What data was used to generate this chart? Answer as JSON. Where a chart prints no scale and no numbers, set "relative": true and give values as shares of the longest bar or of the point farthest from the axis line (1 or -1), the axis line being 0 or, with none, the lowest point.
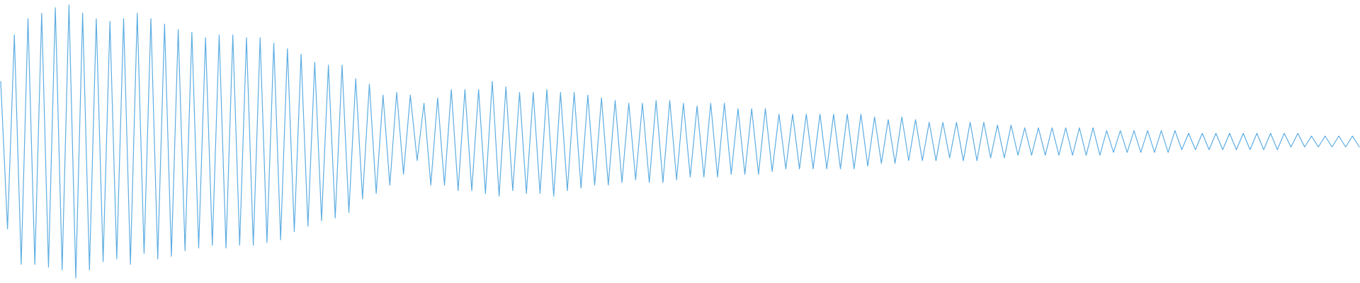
{
  "chart_data": {
    "type": "line",
    "relative": true,
    "color": "#5dade2",
    "categories": [
      null,
      null,
      null,
      null,
      null,
      null,
      null,
      null,
      null,
      null,
      null,
      null,
      null,
      null,
      null,
      null,
      null,
      null,
      null,
      null,
      null,
      null,
      null,
      null,
      null,
      null,
      null,
      null,
      null,
      null,
      null,
      null,
      null,
      null,
      null,
      null,
      null,
      null,
      null,
      null,
      null,
      null,
      null,
      null,
      null,
      null,
      null,
      null,
      null,
      null,
      null,
      null,
      null,
      null,
      null,
      null,
      null,
      null,
      null,
      null,
      null,
      null,
      null,
      null,
      null,
      null,
      null,
      null,
      null,
      null,
      null,
      null,
      null,
      null,
      null,
      null,
      null,
      null,
      null,
      null,
      null,
      null,
      null,
      null,
      null,
      null,
      null,
      null,
      null,
      null,
      null,
      null,
      null,
      null,
      null,
      null,
      null,
      null,
      null,
      null,
      null,
      null,
      null,
      null,
      null,
      null,
      null,
      null,
      null,
      null,
      null,
      null,
      null,
      null,
      null,
      null,
      null,
      null,
      null,
      null,
      null,
      null,
      null,
      null,
      null,
      null,
      null,
      null,
      null,
      null,
      null,
      null,
      null,
      null,
      null,
      null,
      null,
      null,
      null,
      null,
      null,
      null,
      null,
      null,
      null,
      null,
      null,
      null,
      null,
      null,
      null,
      null,
      null,
      null,
      null,
      null,
      null,
      null,
      null,
      null,
      null,
      null,
      null,
      null,
      null,
      null,
      null,
      null,
      null,
      null,
      null,
      null,
      null,
      null,
      null,
      null,
      null,
      null,
      null,
      null,
      null,
      null,
      null,
      null,
      null,
      null,
      null,
      null,
      null,
      null,
      null,
      null,
      null,
      null,
      null,
      null,
      null,
      null,
      null,
      null
    ],
    "values": [
      0.72,
      0.18,
      0.89,
      0.05,
      0.95,
      0.05,
      0.97,
      0.04,
      0.99,
      0.03,
      1,
      0,
      0.97,
      0.03,
      0.95,
      0.06,
      0.94,
      0.07,
      0.95,
      0.05,
      0.97,
      0.09,
      0.95,
      0.07,
      0.93,
      0.08,
      0.91,
      0.1,
      0.9,
      0.11,
      0.88,
      0.12,
      0.89,
      0.11,
      0.89,
      0.12,
      0.88,
      0.12,
      0.88,
      0.13,
      0.86,
      0.14,
      0.84,
      0.17,
      0.82,
      0.19,
      0.79,
      0.21,
      0.78,
      0.22,
      0.78,
      0.24,
      0.73,
      0.29,
      0.71,
      0.31,
      0.67,
      0.34,
      0.68,
      0.38,
      0.67,
      0.43,
      0.64,
      0.34,
      0.66,
      0.34,
      0.69,
      0.32,
      0.69,
      0.32,
      0.69,
      0.31,
      0.72,
      0.3,
      0.7,
      0.32,
      0.68,
      0.31,
      0.68,
      0.31,
      0.69,
      0.3,
      0.68,
      0.32,
      0.68,
      0.33,
      0.67,
      0.34,
      0.66,
      0.34,
      0.65,
      0.35,
      0.64,
      0.36,
      0.64,
      0.35,
      0.65,
      0.35,
      0.65,
      0.36,
      0.64,
      0.37,
      0.63,
      0.37,
      0.64,
      0.37,
      0.64,
      0.38,
      0.62,
      0.38,
      0.62,
      0.38,
      0.62,
      0.39,
      0.6,
      0.4,
      0.6,
      0.4,
      0.6,
      0.4,
      0.6,
      0.4,
      0.6,
      0.4,
      0.6,
      0.4,
      0.6,
      0.41,
      0.59,
      0.42,
      0.58,
      0.42,
      0.59,
      0.43,
      0.58,
      0.43,
      0.57,
      0.43,
      0.57,
      0.44,
      0.57,
      0.43,
      0.57,
      0.43,
      0.57,
      0.44,
      0.56,
      0.44,
      0.56,
      0.45,
      0.55,
      0.45,
      0.55,
      0.45,
      0.55,
      0.45,
      0.55,
      0.45,
      0.55,
      0.45,
      0.55,
      0.45,
      0.54,
      0.46,
      0.54,
      0.46,
      0.54,
      0.46,
      0.54,
      0.46,
      0.54,
      0.46,
      0.54,
      0.47,
      0.53,
      0.47,
      0.53,
      0.47,
      0.53,
      0.47,
      0.53,
      0.47,
      0.53,
      0.47,
      0.53,
      0.47,
      0.53,
      0.47,
      0.53,
      0.48,
      0.53,
      0.48,
      0.52,
      0.48,
      0.52,
      0.48,
      0.52,
      0.48,
      0.52,
      0.48
    ]
  }
}
